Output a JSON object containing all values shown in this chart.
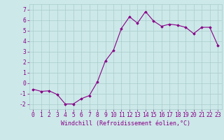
{
  "x": [
    0,
    1,
    2,
    3,
    4,
    5,
    6,
    7,
    8,
    9,
    10,
    11,
    12,
    13,
    14,
    15,
    16,
    17,
    18,
    19,
    20,
    21,
    22,
    23
  ],
  "y": [
    -0.6,
    -0.8,
    -0.75,
    -1.1,
    -2.0,
    -2.0,
    -1.5,
    -1.2,
    0.1,
    2.1,
    3.1,
    5.2,
    6.3,
    5.7,
    6.8,
    5.9,
    5.4,
    5.6,
    5.5,
    5.3,
    4.7,
    5.3,
    5.3,
    3.6
  ],
  "line_color": "#880088",
  "marker": "D",
  "marker_size": 1.8,
  "line_width": 0.8,
  "bg_color": "#cce8e8",
  "grid_color": "#aacccc",
  "xlabel": "Windchill (Refroidissement éolien,°C)",
  "xlabel_fontsize": 6.0,
  "xlabel_color": "#880088",
  "ylim": [
    -2.5,
    7.5
  ],
  "xlim": [
    -0.5,
    23.5
  ],
  "tick_color": "#880088",
  "tick_fontsize": 5.8,
  "yticks": [
    -2,
    -1,
    0,
    1,
    2,
    3,
    4,
    5,
    6,
    7
  ]
}
